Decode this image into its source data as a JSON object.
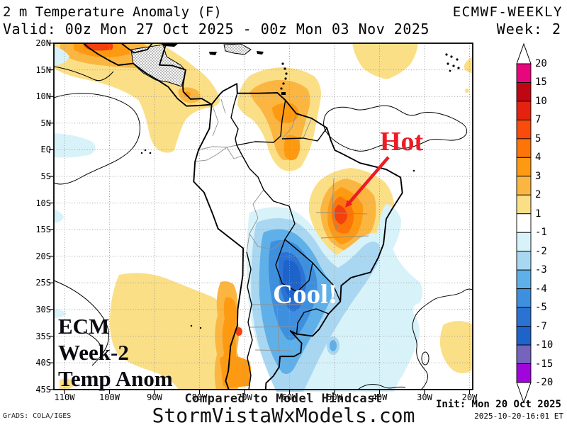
{
  "header": {
    "title": "2 m Temperature Anomaly (F)",
    "model": "ECMWF-WEEKLY",
    "valid": "Valid: 00z Mon 27 Oct 2025 - 00z Mon 03 Nov 2025",
    "week": "Week: 2"
  },
  "map": {
    "lat_labels": [
      "20N",
      "15N",
      "10N",
      "5N",
      "EQ",
      "5S",
      "10S",
      "15S",
      "20S",
      "25S",
      "30S",
      "35S",
      "40S",
      "45S"
    ],
    "lon_labels": [
      "110W",
      "100W",
      "90W",
      "80W",
      "70W",
      "60W",
      "50W",
      "40W",
      "30W",
      "20W"
    ],
    "annotations": {
      "hot": "Hot",
      "cool": "Cool!",
      "ecm_lines": [
        "ECM",
        "Week-2",
        "Temp Anom"
      ]
    },
    "regions_depicted": [
      {
        "area": "Eastern Brazil interior",
        "anomaly_f": "+3 to +10",
        "label": "Hot"
      },
      {
        "area": "Southern Brazil / Uruguay / NE Argentina / Paraguay",
        "anomaly_f": "-3 to -10",
        "label": "Cool!"
      },
      {
        "area": "Chile Andes strip",
        "anomaly_f": "+2 to +7"
      },
      {
        "area": "Mexico / Central America / Venezuela coast",
        "anomaly_f": "+1 to +7"
      },
      {
        "area": "SE Pacific and tropical Atlantic patches",
        "anomaly_f": "+1 to +2"
      }
    ]
  },
  "colorbar": {
    "labels": [
      "20",
      "15",
      "10",
      "7",
      "5",
      "4",
      "3",
      "2",
      "1",
      "-1",
      "-2",
      "-3",
      "-4",
      "-5",
      "-7",
      "-10",
      "-15",
      "-20"
    ],
    "colors": [
      "#E8067F",
      "#BE0712",
      "#E3230F",
      "#F94B0B",
      "#FD7409",
      "#FE9A12",
      "#FBB642",
      "#FBDF87",
      "#FFFFFF",
      "#D8F2FA",
      "#A9D7F1",
      "#5FB0E9",
      "#3E90DF",
      "#2B72D3",
      "#1D63C9",
      "#7464BC",
      "#A005DC"
    ],
    "units": "F"
  },
  "footer": {
    "compare": "Compared to Model Hindcast",
    "site": "StormVistaWxModels.com",
    "grads": "GrADS: COLA/IGES",
    "init": "Init: Mon 20 Oct 2025",
    "timestamp": "2025-10-20-16:01 ET"
  },
  "palette": {
    "pale_yellow": "#FBDF87",
    "amber": "#FBB642",
    "orange": "#FE9A12",
    "deep_orange": "#FD7409",
    "red_core": "#F2400E",
    "cool1": "#D8F2FA",
    "cool2": "#A9D7F1",
    "cool3": "#5FB0E9",
    "cool4": "#3E90DF",
    "cool5": "#2B72D3",
    "cool6": "#1D63C9",
    "hot_red": "#ED1C24"
  }
}
